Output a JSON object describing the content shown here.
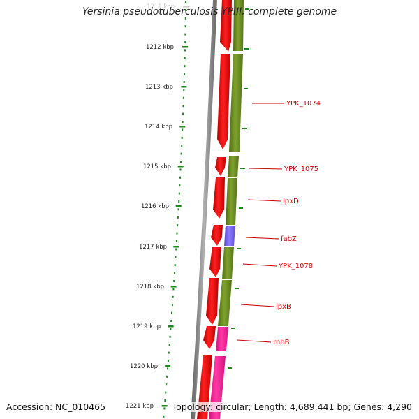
{
  "title": "Yersinia pseudotuberculosis YPIII, complete genome",
  "accession_text": "Accession: NC_010465",
  "topology_text": "Topology: circular; Length: 4,689,441 bp; Genes: 4,290",
  "tick_labels": [
    "1211 kbp",
    "1212 kbp",
    "1213 kbp",
    "1214 kbp",
    "1215 kbp",
    "1216 kbp",
    "1217 kbp",
    "1218 kbp",
    "1219 kbp",
    "1220 kbp",
    "1221 kbp"
  ],
  "genes": [
    {
      "label": "YPK_1074",
      "color": "#6b8e23"
    },
    {
      "label": "YPK_1075",
      "color": "#6b8e23"
    },
    {
      "label": "lpxD",
      "color": "#6b8e23"
    },
    {
      "label": "fabZ",
      "color": "#7b68ee"
    },
    {
      "label": "YPK_1078",
      "color": "#6b8e23"
    },
    {
      "label": "lpxB",
      "color": "#6b8e23"
    },
    {
      "label": "rnhB",
      "color": "#ff1493"
    }
  ],
  "colors": {
    "forward_strand": "#ff0000",
    "backbone": "#808080",
    "ticks": "#1a8a1a",
    "gene_label": "#cc0000"
  }
}
